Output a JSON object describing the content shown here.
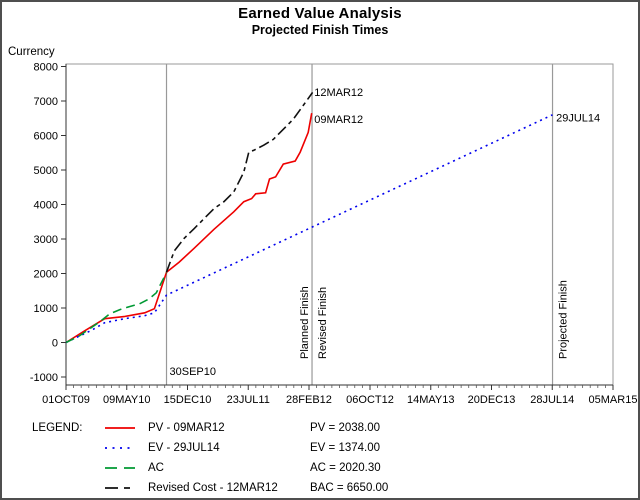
{
  "window": {
    "title": "Earned Value Analysis",
    "subtitle": "Projected Finish Times"
  },
  "chart_data": {
    "type": "line",
    "title": "Earned Value Analysis",
    "subtitle": "Projected Finish Times",
    "xlabel": "",
    "ylabel": "Currency",
    "x_unit": "days since 01OCT09",
    "x_range_days": [
      0,
      1981
    ],
    "ylim": [
      -1000,
      8000
    ],
    "grid": false,
    "x_ticks": [
      {
        "label": "01OCT09",
        "day": 0
      },
      {
        "label": "09MAY10",
        "day": 220
      },
      {
        "label": "15DEC10",
        "day": 440
      },
      {
        "label": "23JUL11",
        "day": 660
      },
      {
        "label": "28FEB12",
        "day": 880
      },
      {
        "label": "06OCT12",
        "day": 1101
      },
      {
        "label": "14MAY13",
        "day": 1321
      },
      {
        "label": "20DEC13",
        "day": 1541
      },
      {
        "label": "28JUL14",
        "day": 1761
      },
      {
        "label": "05MAR15",
        "day": 1981
      }
    ],
    "y_ticks": [
      -1000,
      0,
      1000,
      2000,
      3000,
      4000,
      5000,
      6000,
      7000,
      8000
    ],
    "series": [
      {
        "name": "PV - 09MAR12",
        "color": "#ee0000",
        "dash": "",
        "swatch_dash": "",
        "points": [
          [
            0,
            0
          ],
          [
            70,
            350
          ],
          [
            140,
            690
          ],
          [
            210,
            750
          ],
          [
            285,
            860
          ],
          [
            320,
            980
          ],
          [
            364,
            2038
          ],
          [
            410,
            2330
          ],
          [
            464,
            2730
          ],
          [
            536,
            3280
          ],
          [
            608,
            3790
          ],
          [
            644,
            4080
          ],
          [
            672,
            4170
          ],
          [
            687,
            4310
          ],
          [
            723,
            4340
          ],
          [
            737,
            4740
          ],
          [
            759,
            4800
          ],
          [
            787,
            5170
          ],
          [
            830,
            5260
          ],
          [
            848,
            5520
          ],
          [
            877,
            6090
          ],
          [
            890,
            6650
          ]
        ]
      },
      {
        "name": "EV - 29JUL14",
        "color": "#0000ee",
        "dash": "2 4",
        "swatch_dash": "2 5.5",
        "points": [
          [
            0,
            0
          ],
          [
            90,
            345
          ],
          [
            140,
            575
          ],
          [
            212,
            690
          ],
          [
            284,
            775
          ],
          [
            320,
            860
          ],
          [
            364,
            1374
          ],
          [
            1762,
            6600
          ]
        ]
      },
      {
        "name": "AC",
        "color": "#009933",
        "dash": "9 5",
        "swatch_dash": "12 7",
        "points": [
          [
            0,
            0
          ],
          [
            50,
            200
          ],
          [
            86,
            400
          ],
          [
            122,
            600
          ],
          [
            158,
            830
          ],
          [
            194,
            950
          ],
          [
            230,
            1040
          ],
          [
            266,
            1120
          ],
          [
            302,
            1270
          ],
          [
            327,
            1440
          ],
          [
            345,
            1730
          ],
          [
            364,
            2020
          ]
        ]
      },
      {
        "name": "Revised Cost - 12MAR12",
        "color": "#111111",
        "dash": "11 4 4 4",
        "swatch_dash": "13 6 6 6",
        "points": [
          [
            364,
            2038
          ],
          [
            392,
            2650
          ],
          [
            428,
            3020
          ],
          [
            464,
            3300
          ],
          [
            500,
            3590
          ],
          [
            536,
            3880
          ],
          [
            572,
            4080
          ],
          [
            608,
            4370
          ],
          [
            644,
            4940
          ],
          [
            662,
            5520
          ],
          [
            680,
            5570
          ],
          [
            716,
            5720
          ],
          [
            751,
            5890
          ],
          [
            787,
            6180
          ],
          [
            823,
            6470
          ],
          [
            859,
            6870
          ],
          [
            893,
            7250
          ]
        ]
      }
    ],
    "reference_lines": [
      {
        "day": 364,
        "label": "30SEP10"
      },
      {
        "day": 891,
        "label_left": "Planned Finish",
        "label_right": "Revised Finish"
      },
      {
        "day": 1762,
        "label_right": "Projected Finish"
      }
    ],
    "annotations": [
      {
        "text": "12MAR12",
        "day": 899,
        "value": 7250
      },
      {
        "text": "09MAR12",
        "day": 899,
        "value": 6480
      },
      {
        "text": "29JUL14",
        "day": 1775,
        "value": 6520
      }
    ],
    "colors": {
      "refline": "#999999",
      "frame": "#999999",
      "axis": "#333333"
    }
  },
  "legend": {
    "heading": "LEGEND:",
    "rows": [
      {
        "label": "PV - 09MAR12",
        "value": "PV = 2038.00"
      },
      {
        "label": "EV - 29JUL14",
        "value": "EV = 1374.00"
      },
      {
        "label": "AC",
        "value": "AC = 2020.30"
      },
      {
        "label": "Revised Cost - 12MAR12",
        "value": "BAC = 6650.00"
      }
    ]
  }
}
